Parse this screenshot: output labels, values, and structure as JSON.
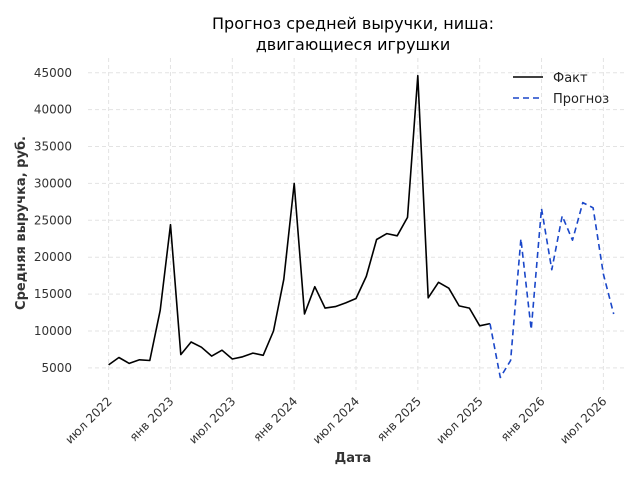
{
  "chart_data": {
    "type": "line",
    "title_lines": [
      "Прогноз средней выручки, ниша:",
      "двигающиеся игрушки"
    ],
    "xlabel": "Дата",
    "ylabel": "Средняя выручка, руб.",
    "x_ticks": [
      {
        "date": "2022-07",
        "label": "июл 2022"
      },
      {
        "date": "2023-01",
        "label": "янв 2023"
      },
      {
        "date": "2023-07",
        "label": "июл 2023"
      },
      {
        "date": "2024-01",
        "label": "янв 2024"
      },
      {
        "date": "2024-07",
        "label": "июл 2024"
      },
      {
        "date": "2025-01",
        "label": "янв 2025"
      },
      {
        "date": "2025-07",
        "label": "июл 2025"
      },
      {
        "date": "2026-01",
        "label": "янв 2026"
      },
      {
        "date": "2026-07",
        "label": "июл 2026"
      }
    ],
    "y_ticks": [
      5000,
      10000,
      15000,
      20000,
      25000,
      30000,
      35000,
      40000,
      45000
    ],
    "xlim": [
      "2022-05",
      "2026-09"
    ],
    "ylim": [
      2000,
      47000
    ],
    "grid": true,
    "legend_position": "top-right",
    "series": [
      {
        "name": "Факт",
        "color": "#000000",
        "style": "solid",
        "points": [
          [
            "2022-07",
            5400
          ],
          [
            "2022-08",
            6400
          ],
          [
            "2022-09",
            5600
          ],
          [
            "2022-10",
            6100
          ],
          [
            "2022-11",
            6000
          ],
          [
            "2022-12",
            12800
          ],
          [
            "2023-01",
            24400
          ],
          [
            "2023-02",
            6800
          ],
          [
            "2023-03",
            8500
          ],
          [
            "2023-04",
            7800
          ],
          [
            "2023-05",
            6600
          ],
          [
            "2023-06",
            7400
          ],
          [
            "2023-07",
            6200
          ],
          [
            "2023-08",
            6500
          ],
          [
            "2023-09",
            7000
          ],
          [
            "2023-10",
            6700
          ],
          [
            "2023-11",
            10000
          ],
          [
            "2023-12",
            17000
          ],
          [
            "2024-01",
            30000
          ],
          [
            "2024-02",
            12300
          ],
          [
            "2024-03",
            16000
          ],
          [
            "2024-04",
            13100
          ],
          [
            "2024-05",
            13300
          ],
          [
            "2024-06",
            13800
          ],
          [
            "2024-07",
            14400
          ],
          [
            "2024-08",
            17400
          ],
          [
            "2024-09",
            22400
          ],
          [
            "2024-10",
            23200
          ],
          [
            "2024-11",
            22900
          ],
          [
            "2024-12",
            25400
          ],
          [
            "2025-01",
            44600
          ],
          [
            "2025-02",
            14500
          ],
          [
            "2025-03",
            16600
          ],
          [
            "2025-04",
            15800
          ],
          [
            "2025-05",
            13400
          ],
          [
            "2025-06",
            13100
          ],
          [
            "2025-07",
            10700
          ],
          [
            "2025-08",
            11000
          ]
        ]
      },
      {
        "name": "Прогноз",
        "color": "#1a47c9",
        "style": "dashed",
        "points": [
          [
            "2025-08",
            11000
          ],
          [
            "2025-09",
            3700
          ],
          [
            "2025-10",
            6000
          ],
          [
            "2025-11",
            22500
          ],
          [
            "2025-12",
            10200
          ],
          [
            "2026-01",
            26600
          ],
          [
            "2026-02",
            18300
          ],
          [
            "2026-03",
            25600
          ],
          [
            "2026-04",
            22300
          ],
          [
            "2026-05",
            27400
          ],
          [
            "2026-06",
            26700
          ],
          [
            "2026-07",
            17700
          ],
          [
            "2026-08",
            12300
          ]
        ]
      }
    ]
  }
}
